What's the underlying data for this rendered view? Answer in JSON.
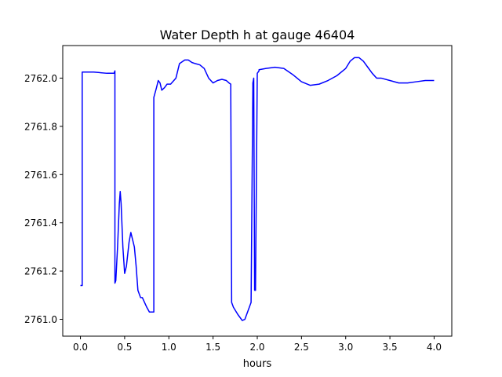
{
  "chart_data": {
    "type": "line",
    "title": "Water Depth h at gauge 46404",
    "xlabel": "hours",
    "ylabel": "",
    "xlim": [
      -0.2,
      4.2
    ],
    "ylim": [
      2760.93,
      2762.135
    ],
    "xticks": [
      0.0,
      0.5,
      1.0,
      1.5,
      2.0,
      2.5,
      3.0,
      3.5,
      4.0
    ],
    "xtick_labels": [
      "0.0",
      "0.5",
      "1.0",
      "1.5",
      "2.0",
      "2.5",
      "3.0",
      "3.5",
      "4.0"
    ],
    "yticks": [
      2761.0,
      2761.2,
      2761.4,
      2761.6,
      2761.8,
      2762.0
    ],
    "ytick_labels": [
      "2761.0",
      "2761.2",
      "2761.4",
      "2761.6",
      "2761.8",
      "2762.0"
    ],
    "grid": false,
    "series": [
      {
        "color": "#0000ff",
        "x": [
          0.0,
          0.02,
          0.02,
          0.15,
          0.3,
          0.35,
          0.38,
          0.39,
          0.39,
          0.4,
          0.42,
          0.44,
          0.45,
          0.46,
          0.48,
          0.5,
          0.52,
          0.55,
          0.57,
          0.59,
          0.61,
          0.63,
          0.65,
          0.68,
          0.7,
          0.75,
          0.78,
          0.82,
          0.83,
          0.83,
          0.86,
          0.88,
          0.9,
          0.92,
          0.95,
          0.98,
          1.02,
          1.08,
          1.12,
          1.18,
          1.22,
          1.26,
          1.3,
          1.35,
          1.4,
          1.45,
          1.5,
          1.55,
          1.6,
          1.65,
          1.68,
          1.7,
          1.71,
          1.71,
          1.73,
          1.78,
          1.83,
          1.86,
          1.9,
          1.93,
          1.95,
          1.95,
          1.96,
          1.97,
          1.98,
          1.98,
          2.0,
          2.02,
          2.02,
          2.1,
          2.2,
          2.3,
          2.4,
          2.5,
          2.6,
          2.7,
          2.8,
          2.9,
          3.0,
          3.05,
          3.1,
          3.15,
          3.2,
          3.25,
          3.3,
          3.35,
          3.4,
          3.5,
          3.6,
          3.7,
          3.8,
          3.9,
          4.0
        ],
        "y": [
          2761.14,
          2761.14,
          2762.025,
          2762.025,
          2762.02,
          2762.02,
          2762.02,
          2762.03,
          2761.15,
          2761.16,
          2761.3,
          2761.48,
          2761.53,
          2761.48,
          2761.3,
          2761.19,
          2761.22,
          2761.32,
          2761.36,
          2761.33,
          2761.3,
          2761.22,
          2761.12,
          2761.09,
          2761.09,
          2761.05,
          2761.03,
          2761.03,
          2761.03,
          2761.92,
          2761.96,
          2761.99,
          2761.98,
          2761.95,
          2761.96,
          2761.975,
          2761.975,
          2762.0,
          2762.06,
          2762.075,
          2762.075,
          2762.065,
          2762.06,
          2762.055,
          2762.04,
          2762.0,
          2761.98,
          2761.99,
          2761.995,
          2761.99,
          2761.98,
          2761.975,
          2761.09,
          2761.07,
          2761.05,
          2761.02,
          2760.995,
          2761.0,
          2761.04,
          2761.07,
          2761.96,
          2761.98,
          2762.0,
          2761.12,
          2761.12,
          2761.13,
          2762.02,
          2762.03,
          2762.035,
          2762.04,
          2762.045,
          2762.04,
          2762.015,
          2761.985,
          2761.97,
          2761.975,
          2761.99,
          2762.01,
          2762.04,
          2762.07,
          2762.085,
          2762.085,
          2762.07,
          2762.045,
          2762.02,
          2762.0,
          2762.0,
          2761.99,
          2761.98,
          2761.98,
          2761.985,
          2761.99,
          2761.99
        ]
      }
    ]
  }
}
